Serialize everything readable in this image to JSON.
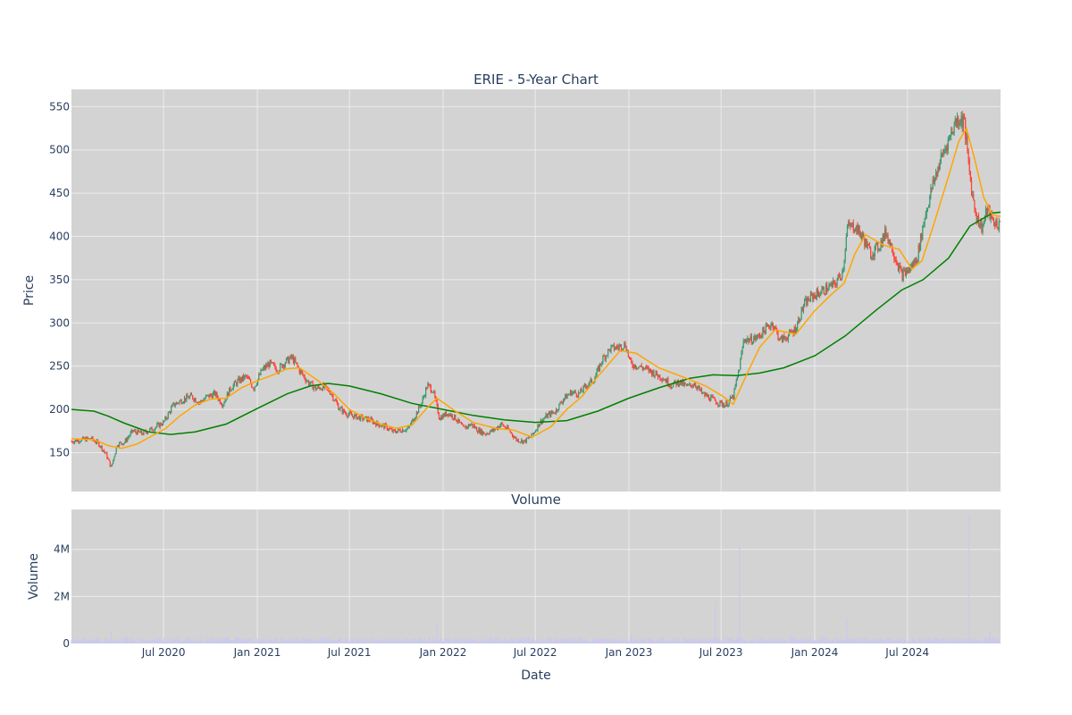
{
  "chart_data": [
    {
      "type": "candlestick",
      "title": "ERIE - 5-Year Chart",
      "ylabel": "Price",
      "ylim": [
        105,
        570
      ],
      "yticks": [
        150,
        200,
        250,
        300,
        350,
        400,
        450,
        500,
        550
      ],
      "x_range": [
        "2020-01-02",
        "2024-12-31"
      ],
      "colors": {
        "up": "#3d9970",
        "down": "#ff4136",
        "ma_short": "#ffa500",
        "ma_long": "#008000",
        "plot_bg": "#d3d3d3"
      },
      "series": [
        {
          "role": "close",
          "points": [
            [
              "2020-01-02",
              163
            ],
            [
              "2020-01-20",
              165
            ],
            [
              "2020-02-10",
              166
            ],
            [
              "2020-02-25",
              160
            ],
            [
              "2020-03-10",
              148
            ],
            [
              "2020-03-20",
              133
            ],
            [
              "2020-04-01",
              160
            ],
            [
              "2020-04-15",
              162
            ],
            [
              "2020-05-01",
              175
            ],
            [
              "2020-05-20",
              172
            ],
            [
              "2020-06-10",
              178
            ],
            [
              "2020-07-01",
              185
            ],
            [
              "2020-07-20",
              205
            ],
            [
              "2020-08-10",
              212
            ],
            [
              "2020-08-25",
              215
            ],
            [
              "2020-09-10",
              208
            ],
            [
              "2020-09-25",
              215
            ],
            [
              "2020-10-10",
              218
            ],
            [
              "2020-10-25",
              206
            ],
            [
              "2020-11-10",
              225
            ],
            [
              "2020-11-25",
              233
            ],
            [
              "2020-12-10",
              238
            ],
            [
              "2020-12-25",
              225
            ],
            [
              "2021-01-10",
              245
            ],
            [
              "2021-01-25",
              253
            ],
            [
              "2021-02-10",
              246
            ],
            [
              "2021-02-25",
              255
            ],
            [
              "2021-03-10",
              260
            ],
            [
              "2021-03-25",
              245
            ],
            [
              "2021-04-10",
              232
            ],
            [
              "2021-04-25",
              224
            ],
            [
              "2021-05-10",
              226
            ],
            [
              "2021-05-25",
              220
            ],
            [
              "2021-06-10",
              202
            ],
            [
              "2021-06-25",
              195
            ],
            [
              "2021-07-10",
              192
            ],
            [
              "2021-07-25",
              190
            ],
            [
              "2021-08-10",
              188
            ],
            [
              "2021-08-25",
              183
            ],
            [
              "2021-09-10",
              180
            ],
            [
              "2021-09-25",
              174
            ],
            [
              "2021-10-10",
              176
            ],
            [
              "2021-10-25",
              178
            ],
            [
              "2021-11-10",
              196
            ],
            [
              "2021-11-20",
              208
            ],
            [
              "2021-12-01",
              228
            ],
            [
              "2021-12-12",
              222
            ],
            [
              "2021-12-25",
              190
            ],
            [
              "2022-01-10",
              196
            ],
            [
              "2022-01-25",
              190
            ],
            [
              "2022-02-10",
              178
            ],
            [
              "2022-02-25",
              183
            ],
            [
              "2022-03-10",
              176
            ],
            [
              "2022-03-25",
              172
            ],
            [
              "2022-04-10",
              176
            ],
            [
              "2022-04-25",
              183
            ],
            [
              "2022-05-10",
              176
            ],
            [
              "2022-05-25",
              165
            ],
            [
              "2022-06-10",
              163
            ],
            [
              "2022-06-25",
              170
            ],
            [
              "2022-07-10",
              185
            ],
            [
              "2022-07-25",
              193
            ],
            [
              "2022-08-10",
              198
            ],
            [
              "2022-08-25",
              212
            ],
            [
              "2022-09-10",
              220
            ],
            [
              "2022-09-25",
              218
            ],
            [
              "2022-10-10",
              228
            ],
            [
              "2022-10-25",
              235
            ],
            [
              "2022-11-10",
              258
            ],
            [
              "2022-11-25",
              270
            ],
            [
              "2022-12-10",
              272
            ],
            [
              "2022-12-25",
              275
            ],
            [
              "2023-01-05",
              252
            ],
            [
              "2023-01-20",
              250
            ],
            [
              "2023-02-10",
              245
            ],
            [
              "2023-02-25",
              240
            ],
            [
              "2023-03-10",
              236
            ],
            [
              "2023-03-25",
              228
            ],
            [
              "2023-04-10",
              232
            ],
            [
              "2023-04-25",
              226
            ],
            [
              "2023-05-10",
              230
            ],
            [
              "2023-05-25",
              218
            ],
            [
              "2023-06-10",
              213
            ],
            [
              "2023-06-25",
              208
            ],
            [
              "2023-07-10",
              205
            ],
            [
              "2023-07-25",
              215
            ],
            [
              "2023-08-05",
              245
            ],
            [
              "2023-08-15",
              282
            ],
            [
              "2023-08-25",
              280
            ],
            [
              "2023-09-10",
              283
            ],
            [
              "2023-09-25",
              292
            ],
            [
              "2023-10-10",
              300
            ],
            [
              "2023-10-25",
              280
            ],
            [
              "2023-11-10",
              285
            ],
            [
              "2023-11-25",
              294
            ],
            [
              "2023-12-10",
              320
            ],
            [
              "2023-12-25",
              330
            ],
            [
              "2024-01-10",
              335
            ],
            [
              "2024-01-25",
              340
            ],
            [
              "2024-02-10",
              345
            ],
            [
              "2024-02-25",
              360
            ],
            [
              "2024-03-05",
              410
            ],
            [
              "2024-03-20",
              412
            ],
            [
              "2024-04-05",
              398
            ],
            [
              "2024-04-20",
              380
            ],
            [
              "2024-05-05",
              388
            ],
            [
              "2024-05-20",
              405
            ],
            [
              "2024-06-05",
              380
            ],
            [
              "2024-06-20",
              355
            ],
            [
              "2024-07-05",
              362
            ],
            [
              "2024-07-20",
              375
            ],
            [
              "2024-08-05",
              425
            ],
            [
              "2024-08-20",
              460
            ],
            [
              "2024-09-05",
              490
            ],
            [
              "2024-09-20",
              512
            ],
            [
              "2024-10-05",
              535
            ],
            [
              "2024-10-20",
              535
            ],
            [
              "2024-10-28",
              490
            ],
            [
              "2024-11-05",
              450
            ],
            [
              "2024-11-15",
              420
            ],
            [
              "2024-11-25",
              410
            ],
            [
              "2024-12-05",
              432
            ],
            [
              "2024-12-15",
              418
            ],
            [
              "2024-12-31",
              412
            ]
          ]
        },
        {
          "role": "ma_short",
          "points": [
            [
              "2020-01-02",
              166
            ],
            [
              "2020-02-15",
              165
            ],
            [
              "2020-03-15",
              158
            ],
            [
              "2020-04-10",
              155
            ],
            [
              "2020-05-10",
              160
            ],
            [
              "2020-06-10",
              170
            ],
            [
              "2020-07-05",
              178
            ],
            [
              "2020-08-01",
              192
            ],
            [
              "2020-09-01",
              205
            ],
            [
              "2020-10-01",
              212
            ],
            [
              "2020-11-01",
              213
            ],
            [
              "2020-12-01",
              225
            ],
            [
              "2021-01-01",
              233
            ],
            [
              "2021-02-01",
              240
            ],
            [
              "2021-03-01",
              247
            ],
            [
              "2021-03-25",
              248
            ],
            [
              "2021-05-01",
              233
            ],
            [
              "2021-06-01",
              218
            ],
            [
              "2021-07-01",
              200
            ],
            [
              "2021-08-01",
              190
            ],
            [
              "2021-09-01",
              183
            ],
            [
              "2021-10-01",
              178
            ],
            [
              "2021-11-01",
              182
            ],
            [
              "2021-12-01",
              202
            ],
            [
              "2021-12-20",
              213
            ],
            [
              "2022-01-20",
              200
            ],
            [
              "2022-03-01",
              185
            ],
            [
              "2022-04-15",
              178
            ],
            [
              "2022-05-20",
              176
            ],
            [
              "2022-06-25",
              168
            ],
            [
              "2022-08-01",
              180
            ],
            [
              "2022-09-01",
              200
            ],
            [
              "2022-10-01",
              215
            ],
            [
              "2022-11-01",
              238
            ],
            [
              "2022-12-15",
              268
            ],
            [
              "2023-01-15",
              265
            ],
            [
              "2023-03-01",
              248
            ],
            [
              "2023-04-15",
              238
            ],
            [
              "2023-06-01",
              227
            ],
            [
              "2023-07-05",
              215
            ],
            [
              "2023-07-25",
              206
            ],
            [
              "2023-08-20",
              240
            ],
            [
              "2023-09-15",
              272
            ],
            [
              "2023-10-15",
              292
            ],
            [
              "2023-11-25",
              287
            ],
            [
              "2024-01-01",
              314
            ],
            [
              "2024-02-01",
              332
            ],
            [
              "2024-02-28",
              346
            ],
            [
              "2024-03-20",
              380
            ],
            [
              "2024-04-10",
              402
            ],
            [
              "2024-05-15",
              390
            ],
            [
              "2024-06-15",
              385
            ],
            [
              "2024-07-10",
              362
            ],
            [
              "2024-07-30",
              372
            ],
            [
              "2024-08-25",
              420
            ],
            [
              "2024-09-20",
              470
            ],
            [
              "2024-10-10",
              510
            ],
            [
              "2024-10-25",
              525
            ],
            [
              "2024-11-10",
              490
            ],
            [
              "2024-11-28",
              445
            ],
            [
              "2024-12-15",
              425
            ],
            [
              "2024-12-31",
              423
            ]
          ]
        },
        {
          "role": "ma_long",
          "points": [
            [
              "2020-01-02",
              200
            ],
            [
              "2020-02-15",
              198
            ],
            [
              "2020-03-15",
              192
            ],
            [
              "2020-04-15",
              184
            ],
            [
              "2020-06-01",
              174
            ],
            [
              "2020-07-15",
              171
            ],
            [
              "2020-09-01",
              174
            ],
            [
              "2020-11-01",
              183
            ],
            [
              "2021-01-01",
              201
            ],
            [
              "2021-03-01",
              218
            ],
            [
              "2021-04-15",
              227
            ],
            [
              "2021-05-20",
              230
            ],
            [
              "2021-07-01",
              227
            ],
            [
              "2021-09-01",
              218
            ],
            [
              "2021-11-01",
              207
            ],
            [
              "2022-01-01",
              200
            ],
            [
              "2022-03-01",
              193
            ],
            [
              "2022-05-01",
              188
            ],
            [
              "2022-07-01",
              185
            ],
            [
              "2022-09-01",
              187
            ],
            [
              "2022-11-01",
              198
            ],
            [
              "2023-01-01",
              213
            ],
            [
              "2023-03-01",
              225
            ],
            [
              "2023-05-01",
              236
            ],
            [
              "2023-06-15",
              240
            ],
            [
              "2023-08-01",
              239
            ],
            [
              "2023-09-15",
              242
            ],
            [
              "2023-11-01",
              248
            ],
            [
              "2024-01-01",
              262
            ],
            [
              "2024-03-01",
              285
            ],
            [
              "2024-05-01",
              315
            ],
            [
              "2024-06-20",
              338
            ],
            [
              "2024-08-01",
              350
            ],
            [
              "2024-09-20",
              375
            ],
            [
              "2024-11-01",
              412
            ],
            [
              "2024-12-15",
              427
            ],
            [
              "2024-12-31",
              428
            ]
          ]
        }
      ]
    },
    {
      "type": "bar",
      "title": "Volume",
      "xlabel": "Date",
      "ylabel": "Volume",
      "ylim": [
        0,
        5700000
      ],
      "yticks": [
        0,
        2000000,
        4000000
      ],
      "ytick_labels": [
        "0",
        "2M",
        "4M"
      ],
      "xticks": [
        "2020-07-01",
        "2021-01-01",
        "2021-07-01",
        "2022-01-01",
        "2022-07-01",
        "2023-01-01",
        "2023-07-01",
        "2024-01-01",
        "2024-07-01"
      ],
      "xtick_labels": [
        "Jul 2020",
        "Jan 2021",
        "Jul 2021",
        "Jan 2022",
        "Jul 2022",
        "Jan 2023",
        "Jul 2023",
        "Jan 2024",
        "Jul 2024"
      ],
      "baseline": 170000,
      "colors": {
        "bar": "#c9c9ee",
        "plot_bg": "#d3d3d3"
      },
      "spikes": [
        [
          "2020-03-20",
          500000
        ],
        [
          "2020-04-20",
          380000
        ],
        [
          "2020-11-20",
          300000
        ],
        [
          "2021-03-20",
          280000
        ],
        [
          "2021-12-20",
          850000
        ],
        [
          "2023-01-05",
          400000
        ],
        [
          "2023-06-20",
          1800000
        ],
        [
          "2023-08-06",
          4100000
        ],
        [
          "2023-11-15",
          380000
        ],
        [
          "2024-01-15",
          350000
        ],
        [
          "2024-03-04",
          1050000
        ],
        [
          "2024-10-30",
          5450000
        ],
        [
          "2024-12-10",
          600000
        ]
      ]
    }
  ]
}
